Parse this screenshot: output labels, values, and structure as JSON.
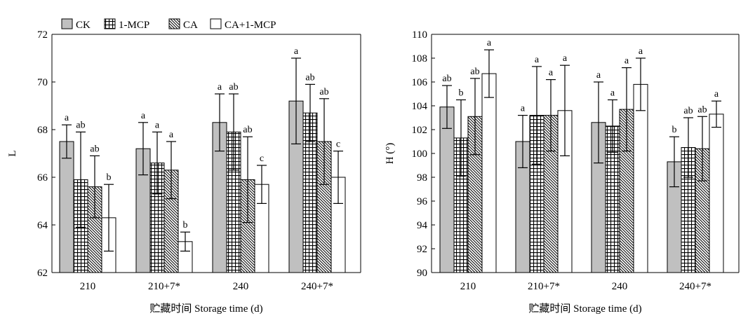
{
  "legend": [
    {
      "name": "CK",
      "pattern": "gray"
    },
    {
      "name": "1-MCP",
      "pattern": "grid"
    },
    {
      "name": "CA",
      "pattern": "diagonal"
    },
    {
      "name": "CA+1-MCP",
      "pattern": "white"
    }
  ],
  "colors": {
    "ck_fill": "#c0c0c0",
    "stroke": "#000000",
    "background": "#ffffff"
  },
  "chart_data": [
    {
      "type": "bar",
      "xlabel": "贮藏时间 Storage time (d)",
      "ylabel": "L",
      "ylim": [
        62,
        72
      ],
      "yticks": [
        "62",
        "64",
        "66",
        "68",
        "70",
        "72"
      ],
      "categories": [
        "210",
        "210+7*",
        "240",
        "240+7*"
      ],
      "legend_position": "top-left",
      "grid": false,
      "series": [
        {
          "name": "CK",
          "values": [
            67.5,
            67.2,
            68.3,
            69.2
          ],
          "errors": [
            0.7,
            1.1,
            1.2,
            1.8
          ],
          "labels": [
            "a",
            "a",
            "a",
            "a"
          ]
        },
        {
          "name": "1-MCP",
          "values": [
            65.9,
            66.6,
            67.9,
            68.7
          ],
          "errors": [
            2.0,
            1.3,
            1.6,
            1.2
          ],
          "labels": [
            "ab",
            "a",
            "ab",
            "ab"
          ]
        },
        {
          "name": "CA",
          "values": [
            65.6,
            66.3,
            65.9,
            67.5
          ],
          "errors": [
            1.3,
            1.2,
            1.8,
            1.8
          ],
          "labels": [
            "ab",
            "a",
            "ab",
            "ab"
          ]
        },
        {
          "name": "CA+1-MCP",
          "values": [
            64.3,
            63.3,
            65.7,
            66.0
          ],
          "errors": [
            1.4,
            0.4,
            0.8,
            1.1
          ],
          "labels": [
            "b",
            "b",
            "c",
            "c"
          ]
        }
      ]
    },
    {
      "type": "bar",
      "xlabel": "贮藏时间 Storage time (d)",
      "ylabel": "H (°)",
      "ylim": [
        90,
        110
      ],
      "yticks": [
        "90",
        "92",
        "94",
        "96",
        "98",
        "100",
        "102",
        "104",
        "106",
        "108",
        "110"
      ],
      "categories": [
        "210",
        "210+7*",
        "240",
        "240+7*"
      ],
      "grid": false,
      "series": [
        {
          "name": "CK",
          "values": [
            103.9,
            101.0,
            102.6,
            99.3
          ],
          "errors": [
            1.8,
            2.2,
            3.4,
            2.1
          ],
          "labels": [
            "ab",
            "a",
            "a",
            "b"
          ]
        },
        {
          "name": "1-MCP",
          "values": [
            101.3,
            103.2,
            102.3,
            100.5
          ],
          "errors": [
            3.2,
            4.1,
            2.2,
            2.5
          ],
          "labels": [
            "b",
            "a",
            "a",
            "ab"
          ]
        },
        {
          "name": "CA",
          "values": [
            103.1,
            103.2,
            103.7,
            100.4
          ],
          "errors": [
            3.2,
            3.0,
            3.5,
            2.7
          ],
          "labels": [
            "ab",
            "a",
            "a",
            "ab"
          ]
        },
        {
          "name": "CA+1-MCP",
          "values": [
            106.7,
            103.6,
            105.8,
            103.3
          ],
          "errors": [
            2.0,
            3.8,
            2.2,
            1.1
          ],
          "labels": [
            "a",
            "a",
            "a",
            "a"
          ]
        }
      ]
    }
  ]
}
